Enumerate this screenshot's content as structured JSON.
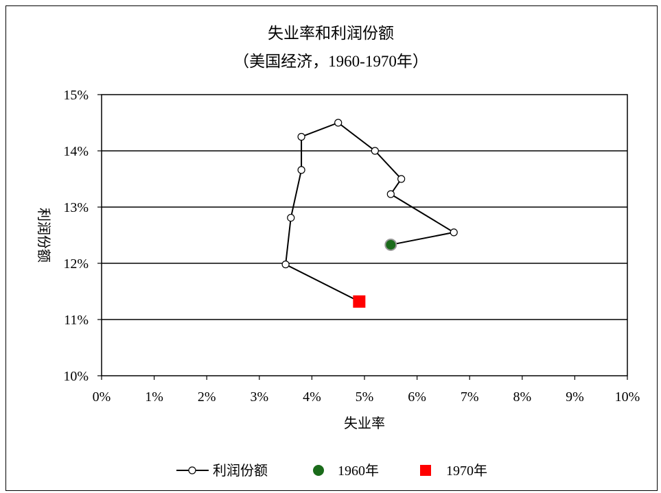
{
  "chart_data": {
    "type": "line",
    "title": "失业率和利润份额",
    "subtitle": "（美国经济，1960-1970年）",
    "xlabel": "失业率",
    "ylabel": "利润份额",
    "xlim": [
      0,
      10
    ],
    "ylim": [
      10,
      15
    ],
    "x_ticks": [
      "0%",
      "1%",
      "2%",
      "3%",
      "4%",
      "5%",
      "6%",
      "7%",
      "8%",
      "9%",
      "10%"
    ],
    "y_ticks": [
      "10%",
      "11%",
      "12%",
      "13%",
      "14%",
      "15%"
    ],
    "grid": {
      "horizontal": true,
      "vertical": false
    },
    "legend_position": "bottom",
    "series": [
      {
        "name": "利润份额",
        "marker": "open-circle",
        "color": "#000000",
        "points": [
          {
            "x": 5.5,
            "y": 12.33
          },
          {
            "x": 6.7,
            "y": 12.55
          },
          {
            "x": 5.5,
            "y": 13.23
          },
          {
            "x": 5.7,
            "y": 13.5
          },
          {
            "x": 5.2,
            "y": 14.0
          },
          {
            "x": 4.5,
            "y": 14.5
          },
          {
            "x": 3.8,
            "y": 14.25
          },
          {
            "x": 3.8,
            "y": 13.66
          },
          {
            "x": 3.6,
            "y": 12.81
          },
          {
            "x": 3.5,
            "y": 11.98
          },
          {
            "x": 4.9,
            "y": 11.32
          }
        ]
      },
      {
        "name": "1960年",
        "marker": "filled-circle",
        "color": "#1a6b1a",
        "points": [
          {
            "x": 5.5,
            "y": 12.33
          }
        ]
      },
      {
        "name": "1970年",
        "marker": "filled-square",
        "color": "#ff0000",
        "points": [
          {
            "x": 4.9,
            "y": 11.32
          }
        ]
      }
    ]
  }
}
